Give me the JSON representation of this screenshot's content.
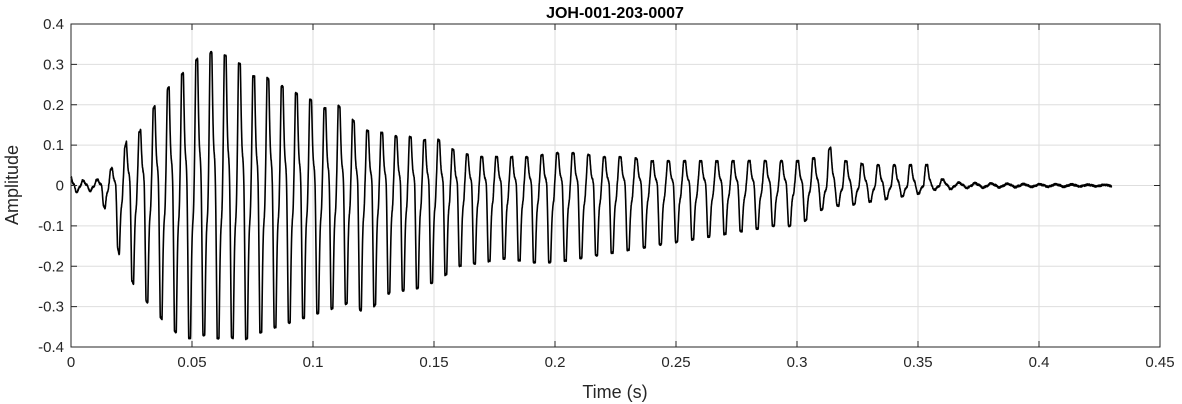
{
  "chart_data": {
    "type": "line",
    "title": "JOH-001-203-0007",
    "xlabel": "Time (s)",
    "ylabel": "Amplitude",
    "xlim": [
      0,
      0.45
    ],
    "ylim": [
      -0.4,
      0.4
    ],
    "grid": true,
    "xticks": [
      0,
      0.05,
      0.1,
      0.15,
      0.2,
      0.25,
      0.3,
      0.35,
      0.4,
      0.45
    ],
    "xtick_labels": [
      "0",
      "0.05",
      "0.1",
      "0.15",
      "0.2",
      "0.25",
      "0.3",
      "0.35",
      "0.4",
      "0.45"
    ],
    "yticks": [
      -0.4,
      -0.3,
      -0.2,
      -0.1,
      0,
      0.1,
      0.2,
      0.3,
      0.4
    ],
    "ytick_labels": [
      "-0.4",
      "-0.3",
      "-0.2",
      "-0.1",
      "0",
      "0.1",
      "0.2",
      "0.3",
      "0.4"
    ],
    "series": [
      {
        "color": "#000000",
        "x": [
          0.0,
          0.003,
          0.006,
          0.009,
          0.012,
          0.015,
          0.018,
          0.021,
          0.024,
          0.027,
          0.03,
          0.035,
          0.04,
          0.045,
          0.05,
          0.055,
          0.06,
          0.065,
          0.07,
          0.075,
          0.08,
          0.085,
          0.09,
          0.095,
          0.1,
          0.105,
          0.11,
          0.115,
          0.12,
          0.125,
          0.13,
          0.135,
          0.14,
          0.145,
          0.15,
          0.155,
          0.16,
          0.17,
          0.18,
          0.19,
          0.2,
          0.21,
          0.22,
          0.23,
          0.24,
          0.25,
          0.26,
          0.27,
          0.28,
          0.29,
          0.3,
          0.31,
          0.315,
          0.32,
          0.33,
          0.34,
          0.35,
          0.355,
          0.36,
          0.365,
          0.37,
          0.38,
          0.39,
          0.4,
          0.41,
          0.42,
          0.43
        ],
        "upper": [
          0.02,
          0.015,
          0.01,
          0.012,
          0.015,
          0.03,
          0.05,
          0.07,
          0.13,
          0.12,
          0.15,
          0.2,
          0.24,
          0.27,
          0.3,
          0.33,
          0.33,
          0.32,
          0.3,
          0.27,
          0.27,
          0.25,
          0.24,
          0.22,
          0.21,
          0.19,
          0.2,
          0.17,
          0.14,
          0.13,
          0.13,
          0.12,
          0.12,
          0.11,
          0.12,
          0.1,
          0.08,
          0.07,
          0.07,
          0.07,
          0.08,
          0.08,
          0.07,
          0.07,
          0.06,
          0.06,
          0.06,
          0.06,
          0.06,
          0.06,
          0.06,
          0.07,
          0.1,
          0.06,
          0.05,
          0.05,
          0.05,
          0.05,
          0.015,
          0.008,
          0.006,
          0.005,
          0.004,
          0.003,
          0.003,
          0.002,
          0.002
        ],
        "lower": [
          -0.02,
          -0.015,
          -0.01,
          -0.015,
          -0.03,
          -0.07,
          -0.12,
          -0.2,
          -0.22,
          -0.26,
          -0.28,
          -0.31,
          -0.35,
          -0.37,
          -0.38,
          -0.37,
          -0.38,
          -0.37,
          -0.39,
          -0.37,
          -0.36,
          -0.35,
          -0.34,
          -0.33,
          -0.32,
          -0.31,
          -0.3,
          -0.29,
          -0.31,
          -0.3,
          -0.27,
          -0.26,
          -0.26,
          -0.25,
          -0.24,
          -0.22,
          -0.2,
          -0.19,
          -0.18,
          -0.19,
          -0.19,
          -0.18,
          -0.17,
          -0.16,
          -0.15,
          -0.14,
          -0.13,
          -0.12,
          -0.11,
          -0.1,
          -0.1,
          -0.06,
          -0.05,
          -0.05,
          -0.04,
          -0.03,
          -0.02,
          -0.01,
          -0.01,
          -0.008,
          -0.006,
          -0.005,
          -0.004,
          -0.003,
          -0.003,
          -0.002,
          -0.002
        ],
        "frequency_hz": [
          200,
          190,
          180,
          170,
          170,
          170,
          170,
          170,
          170,
          170,
          170,
          170,
          170,
          170,
          170,
          170,
          170,
          170,
          170,
          170,
          170,
          170,
          170,
          170,
          170,
          170,
          170,
          170,
          170,
          170,
          170,
          170,
          170,
          170,
          170,
          170,
          170,
          165,
          160,
          160,
          155,
          155,
          155,
          150,
          150,
          150,
          150,
          150,
          150,
          150,
          150,
          150,
          150,
          150,
          150,
          150,
          150,
          150,
          150,
          150,
          150,
          150,
          150,
          150,
          150,
          150,
          150
        ]
      }
    ]
  }
}
